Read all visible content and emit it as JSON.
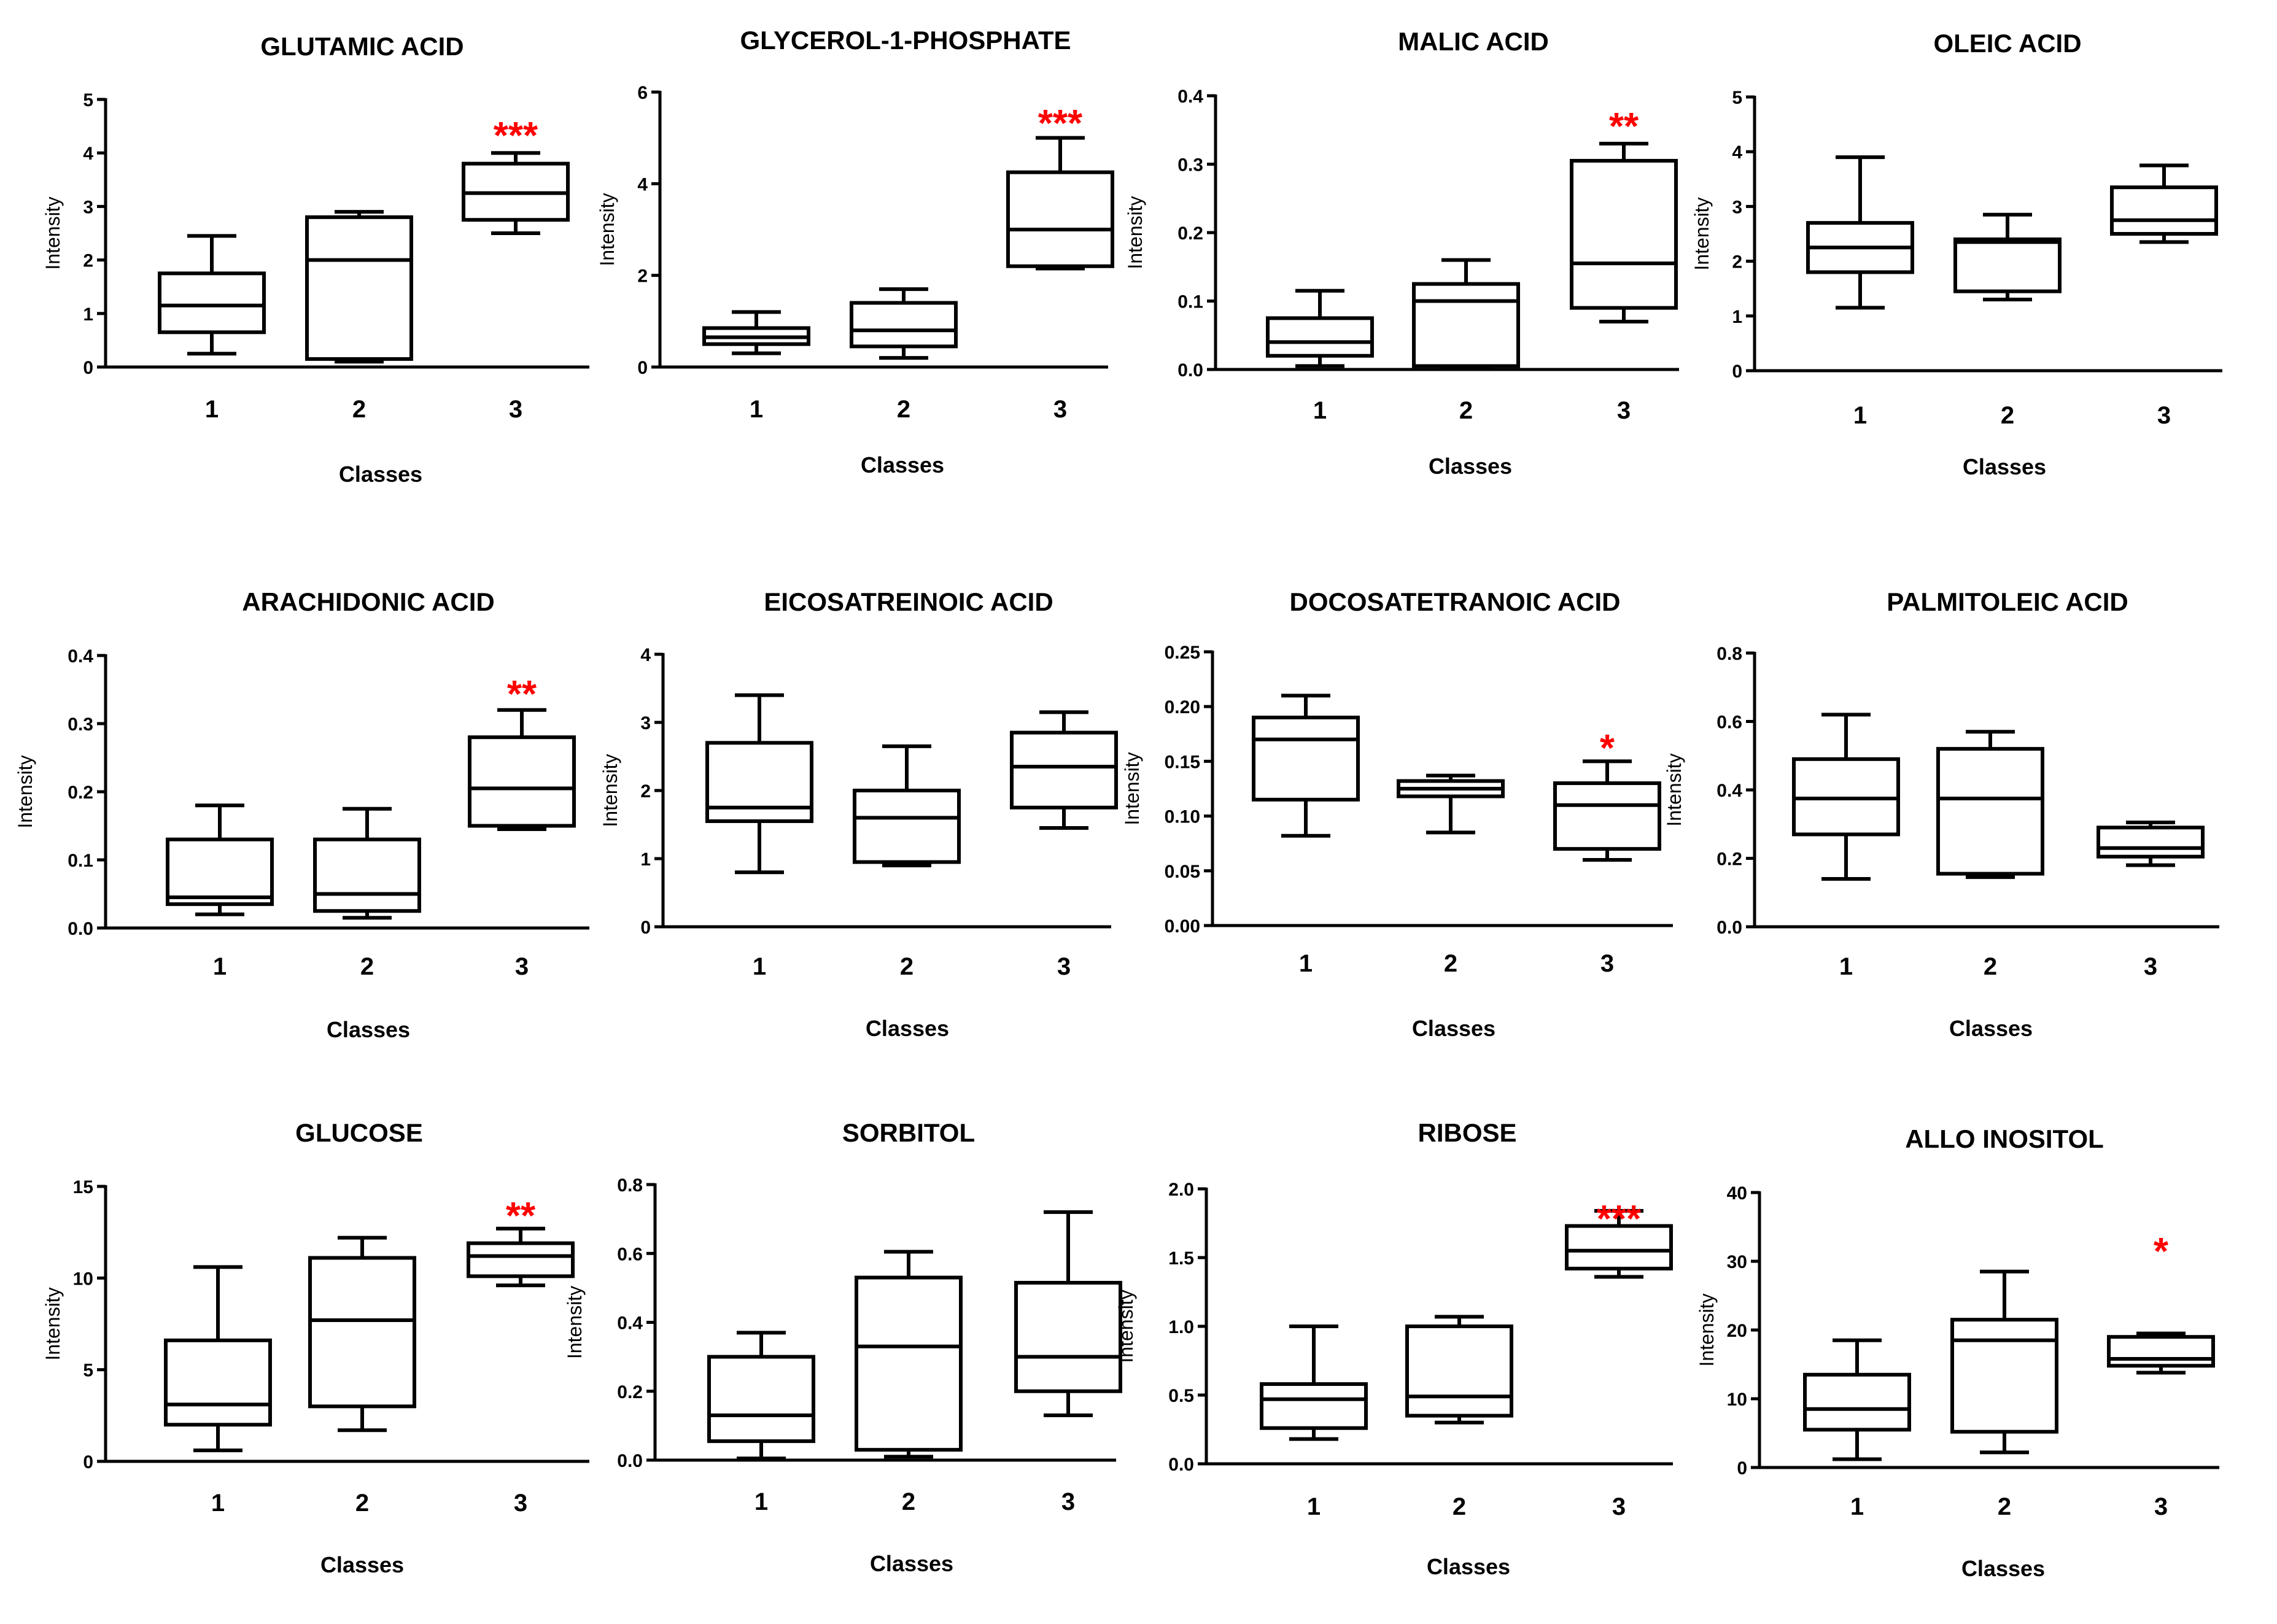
{
  "chart_data": [
    {
      "type": "box",
      "title": "GLUTAMIC ACID",
      "xlabel": "Classes",
      "ylabel": "Intensity",
      "ylim": [
        0,
        5
      ],
      "yticks": [
        "0",
        "1",
        "2",
        "3",
        "4",
        "5"
      ],
      "categories": [
        "1",
        "2",
        "3"
      ],
      "boxes": [
        {
          "min": 0.25,
          "q1": 0.65,
          "median": 1.15,
          "q3": 1.75,
          "max": 2.45
        },
        {
          "min": 0.1,
          "q1": 0.15,
          "median": 2.0,
          "q3": 2.8,
          "max": 2.9
        },
        {
          "min": 2.5,
          "q1": 2.75,
          "median": 3.25,
          "q3": 3.8,
          "max": 4.0
        }
      ],
      "significance": [
        "",
        "",
        "***"
      ],
      "sig_color": "#ff0000"
    },
    {
      "type": "box",
      "title": "GLYCEROL-1-PHOSPHATE",
      "xlabel": "Classes",
      "ylabel": "Intensity",
      "ylim": [
        0,
        6
      ],
      "yticks": [
        "0",
        "2",
        "4",
        "6"
      ],
      "categories": [
        "1",
        "2",
        "3"
      ],
      "boxes": [
        {
          "min": 0.3,
          "q1": 0.5,
          "median": 0.65,
          "q3": 0.85,
          "max": 1.2
        },
        {
          "min": 0.2,
          "q1": 0.45,
          "median": 0.8,
          "q3": 1.4,
          "max": 1.7
        },
        {
          "min": 2.15,
          "q1": 2.2,
          "median": 3.0,
          "q3": 4.25,
          "max": 5.0
        }
      ],
      "significance": [
        "",
        "",
        "***"
      ],
      "sig_color": "#ff0000"
    },
    {
      "type": "box",
      "title": "MALIC ACID",
      "xlabel": "Classes",
      "ylabel": "Intensity",
      "ylim": [
        0,
        0.4
      ],
      "yticks": [
        "0.0",
        "0.1",
        "0.2",
        "0.3",
        "0.4"
      ],
      "categories": [
        "1",
        "2",
        "3"
      ],
      "boxes": [
        {
          "min": 0.005,
          "q1": 0.02,
          "median": 0.04,
          "q3": 0.075,
          "max": 0.115
        },
        {
          "min": 0.003,
          "q1": 0.005,
          "median": 0.1,
          "q3": 0.125,
          "max": 0.16
        },
        {
          "min": 0.07,
          "q1": 0.09,
          "median": 0.155,
          "q3": 0.305,
          "max": 0.33
        }
      ],
      "significance": [
        "",
        "",
        "**"
      ],
      "sig_color": "#ff0000"
    },
    {
      "type": "box",
      "title": "OLEIC ACID",
      "xlabel": "Classes",
      "ylabel": "Intensity",
      "ylim": [
        0,
        5
      ],
      "yticks": [
        "0",
        "1",
        "2",
        "3",
        "4",
        "5"
      ],
      "categories": [
        "1",
        "2",
        "3"
      ],
      "boxes": [
        {
          "min": 1.15,
          "q1": 1.8,
          "median": 2.25,
          "q3": 2.7,
          "max": 3.9
        },
        {
          "min": 1.3,
          "q1": 1.45,
          "median": 2.35,
          "q3": 2.4,
          "max": 2.85
        },
        {
          "min": 2.35,
          "q1": 2.5,
          "median": 2.75,
          "q3": 3.35,
          "max": 3.75
        }
      ],
      "significance": [
        "",
        "",
        ""
      ],
      "sig_color": "#ff0000"
    },
    {
      "type": "box",
      "title": "ARACHIDONIC ACID",
      "xlabel": "Classes",
      "ylabel": "Intensity",
      "ylim": [
        0,
        0.4
      ],
      "yticks": [
        "0.0",
        "0.1",
        "0.2",
        "0.3",
        "0.4"
      ],
      "categories": [
        "1",
        "2",
        "3"
      ],
      "boxes": [
        {
          "min": 0.02,
          "q1": 0.035,
          "median": 0.045,
          "q3": 0.13,
          "max": 0.18
        },
        {
          "min": 0.015,
          "q1": 0.025,
          "median": 0.05,
          "q3": 0.13,
          "max": 0.175
        },
        {
          "min": 0.145,
          "q1": 0.15,
          "median": 0.205,
          "q3": 0.28,
          "max": 0.32
        }
      ],
      "significance": [
        "",
        "",
        "**"
      ],
      "sig_color": "#ff0000"
    },
    {
      "type": "box",
      "title": "EICOSATREINOIC ACID",
      "xlabel": "Classes",
      "ylabel": "Intensity",
      "ylim": [
        0,
        4
      ],
      "yticks": [
        "0",
        "1",
        "2",
        "3",
        "4"
      ],
      "categories": [
        "1",
        "2",
        "3"
      ],
      "boxes": [
        {
          "min": 0.8,
          "q1": 1.55,
          "median": 1.75,
          "q3": 2.7,
          "max": 3.4
        },
        {
          "min": 0.9,
          "q1": 0.95,
          "median": 1.6,
          "q3": 2.0,
          "max": 2.65
        },
        {
          "min": 1.45,
          "q1": 1.75,
          "median": 2.35,
          "q3": 2.85,
          "max": 3.15
        }
      ],
      "significance": [
        "",
        "",
        ""
      ],
      "sig_color": "#ff0000"
    },
    {
      "type": "box",
      "title": "DOCOSATETRANOIC ACID",
      "xlabel": "Classes",
      "ylabel": "Intensity",
      "ylim": [
        0,
        0.25
      ],
      "yticks": [
        "0.00",
        "0.05",
        "0.10",
        "0.15",
        "0.20",
        "0.25"
      ],
      "categories": [
        "1",
        "2",
        "3"
      ],
      "boxes": [
        {
          "min": 0.082,
          "q1": 0.115,
          "median": 0.17,
          "q3": 0.19,
          "max": 0.21
        },
        {
          "min": 0.085,
          "q1": 0.118,
          "median": 0.125,
          "q3": 0.132,
          "max": 0.137
        },
        {
          "min": 0.06,
          "q1": 0.07,
          "median": 0.11,
          "q3": 0.13,
          "max": 0.15
        }
      ],
      "significance": [
        "",
        "",
        "*"
      ],
      "sig_color": "#ff0000"
    },
    {
      "type": "box",
      "title": "PALMITOLEIC ACID",
      "xlabel": "Classes",
      "ylabel": "Intensity",
      "ylim": [
        0,
        0.8
      ],
      "yticks": [
        "0.0",
        "0.2",
        "0.4",
        "0.6",
        "0.8"
      ],
      "categories": [
        "1",
        "2",
        "3"
      ],
      "boxes": [
        {
          "min": 0.14,
          "q1": 0.27,
          "median": 0.375,
          "q3": 0.49,
          "max": 0.62
        },
        {
          "min": 0.145,
          "q1": 0.155,
          "median": 0.375,
          "q3": 0.52,
          "max": 0.57
        },
        {
          "min": 0.18,
          "q1": 0.205,
          "median": 0.23,
          "q3": 0.29,
          "max": 0.305
        }
      ],
      "significance": [
        "",
        "",
        ""
      ],
      "sig_color": "#ff0000"
    },
    {
      "type": "box",
      "title": "GLUCOSE",
      "xlabel": "Classes",
      "ylabel": "Intensity",
      "ylim": [
        0,
        15
      ],
      "yticks": [
        "0",
        "5",
        "10",
        "15"
      ],
      "categories": [
        "1",
        "2",
        "3"
      ],
      "boxes": [
        {
          "min": 0.6,
          "q1": 2.0,
          "median": 3.1,
          "q3": 6.6,
          "max": 10.6
        },
        {
          "min": 1.7,
          "q1": 3.0,
          "median": 7.7,
          "q3": 11.1,
          "max": 12.2
        },
        {
          "min": 9.6,
          "q1": 10.1,
          "median": 11.2,
          "q3": 11.9,
          "max": 12.7
        }
      ],
      "significance": [
        "",
        "",
        "**"
      ],
      "sig_color": "#ff0000"
    },
    {
      "type": "box",
      "title": "SORBITOL",
      "xlabel": "Classes",
      "ylabel": "Intensity",
      "ylim": [
        0,
        0.8
      ],
      "yticks": [
        "0.0",
        "0.2",
        "0.4",
        "0.6",
        "0.8"
      ],
      "categories": [
        "1",
        "2",
        "3"
      ],
      "boxes": [
        {
          "min": 0.005,
          "q1": 0.055,
          "median": 0.13,
          "q3": 0.3,
          "max": 0.37
        },
        {
          "min": 0.01,
          "q1": 0.03,
          "median": 0.33,
          "q3": 0.53,
          "max": 0.605
        },
        {
          "min": 0.13,
          "q1": 0.2,
          "median": 0.3,
          "q3": 0.515,
          "max": 0.72
        }
      ],
      "significance": [
        "",
        "",
        ""
      ],
      "sig_color": "#ff0000"
    },
    {
      "type": "box",
      "title": "RIBOSE",
      "xlabel": "Classes",
      "ylabel": "Intensity",
      "ylim": [
        0,
        2
      ],
      "yticks": [
        "0.0",
        "0.5",
        "1.0",
        "1.5",
        "2.0"
      ],
      "categories": [
        "1",
        "2",
        "3"
      ],
      "boxes": [
        {
          "min": 0.18,
          "q1": 0.26,
          "median": 0.47,
          "q3": 0.58,
          "max": 1.0
        },
        {
          "min": 0.3,
          "q1": 0.35,
          "median": 0.49,
          "q3": 1.0,
          "max": 1.07
        },
        {
          "min": 1.36,
          "q1": 1.42,
          "median": 1.55,
          "q3": 1.73,
          "max": 1.84
        }
      ],
      "significance": [
        "",
        "",
        "***"
      ],
      "sig_color": "#ff0000"
    },
    {
      "type": "box",
      "title": "ALLO INOSITOL",
      "xlabel": "Classes",
      "ylabel": "Intensity",
      "ylim": [
        0,
        40
      ],
      "yticks": [
        "0",
        "10",
        "20",
        "30",
        "40"
      ],
      "categories": [
        "1",
        "2",
        "3"
      ],
      "boxes": [
        {
          "min": 1.2,
          "q1": 5.5,
          "median": 8.5,
          "q3": 13.5,
          "max": 18.5
        },
        {
          "min": 2.2,
          "q1": 5.2,
          "median": 18.5,
          "q3": 21.5,
          "max": 28.5
        },
        {
          "min": 13.8,
          "q1": 14.8,
          "median": 15.8,
          "q3": 19.0,
          "max": 19.5
        }
      ],
      "significance": [
        "",
        "",
        "*"
      ],
      "sig_color": "#ff0000"
    }
  ]
}
